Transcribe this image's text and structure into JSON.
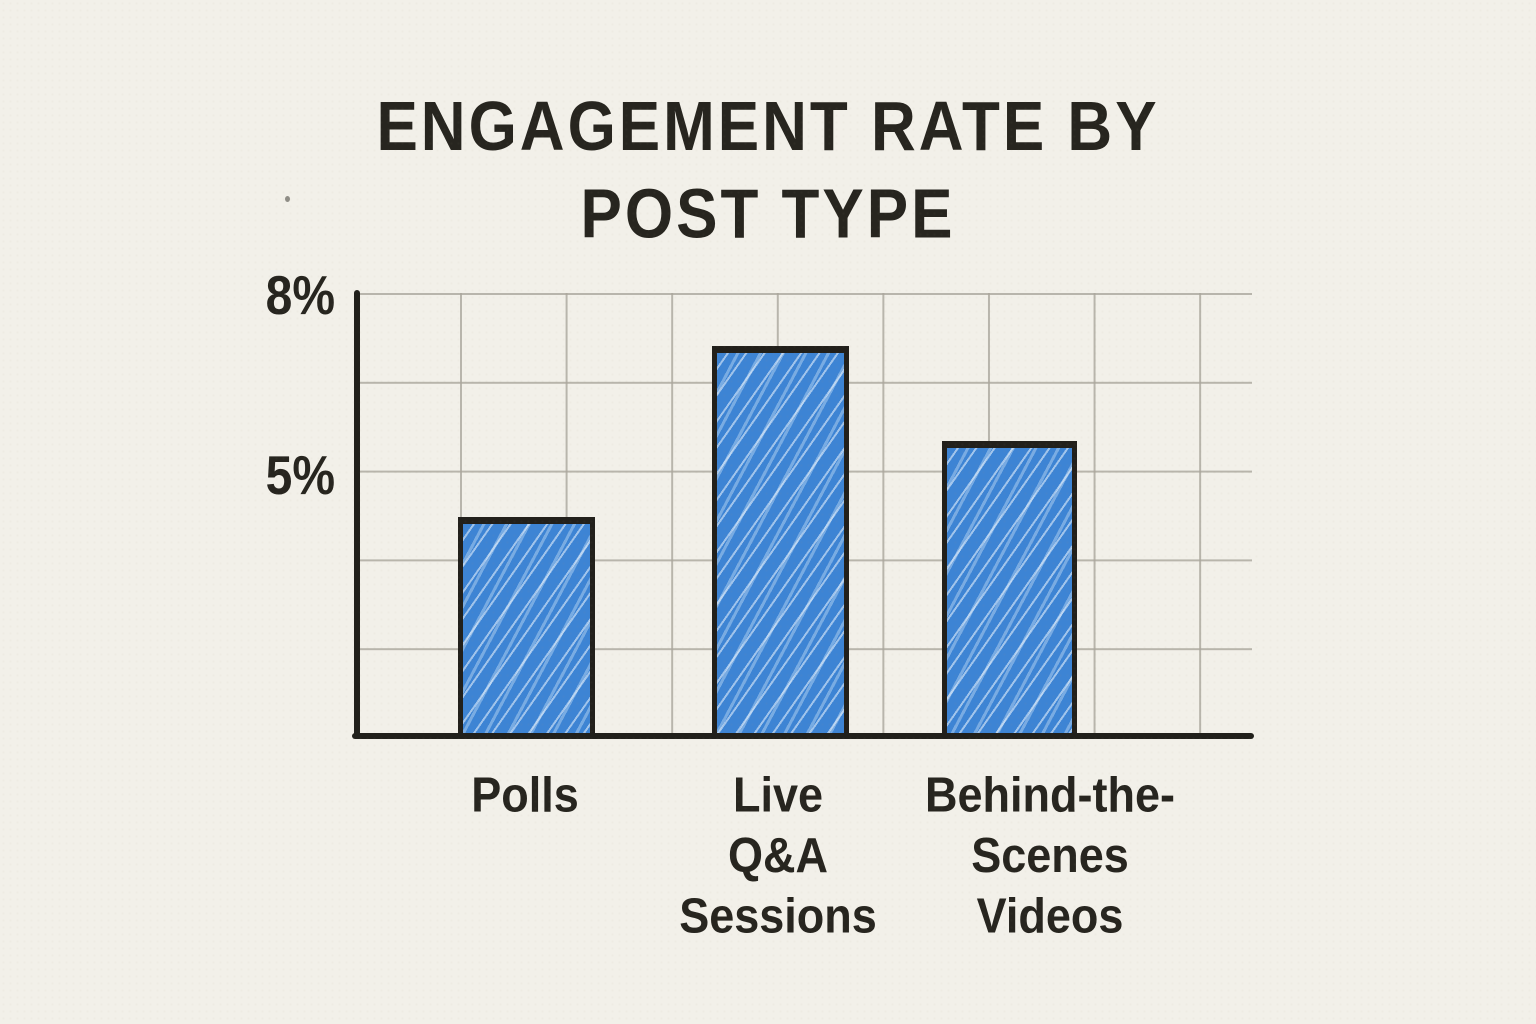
{
  "page": {
    "background_color": "#f2f0e9",
    "ink_color": "#27251f",
    "grid_color": "#aaa69c",
    "style": "hand-drawn sketch on paper"
  },
  "title": {
    "line1": "ENGAGEMENT RATE BY",
    "line2": "POST TYPE"
  },
  "chart_data": {
    "type": "bar",
    "title": "ENGAGEMENT RATE BY POST TYPE",
    "categories": [
      "Polls",
      "Live Q&A Sessions",
      "Behind-the-Scenes Videos"
    ],
    "category_labels_multiline": [
      "Polls",
      "Live\nQ&A\nSessions",
      "Behind-the-\nScenes\nVideos"
    ],
    "values": [
      4.2,
      7.1,
      5.5
    ],
    "unit": "%",
    "xlabel": "",
    "ylabel": "",
    "y_ticks": [
      {
        "value": 8,
        "label": "8%"
      },
      {
        "value": 5,
        "label": "5%"
      }
    ],
    "ylim": [
      0.5,
      8
    ],
    "gridline_values": [
      8,
      6.5,
      5,
      3.5,
      2,
      0.5
    ],
    "grid": true,
    "legend": "none",
    "bar_fill_color": "#3d84d4",
    "bar_hatch_color": "#d2e7fa",
    "bar_outline_color": "#22201b"
  }
}
